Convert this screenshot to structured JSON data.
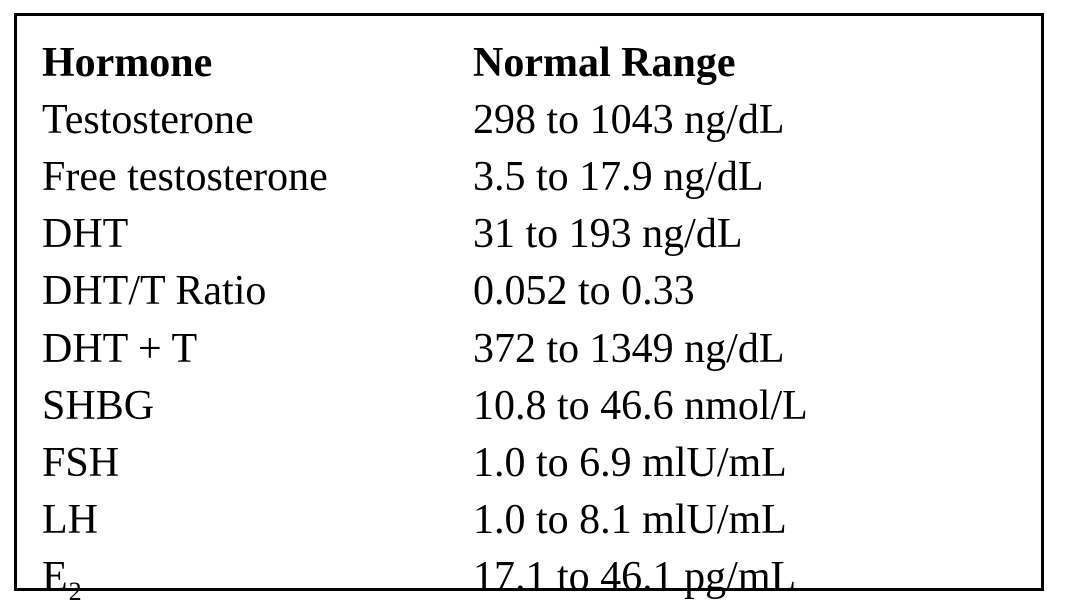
{
  "table": {
    "headers": {
      "hormone": "Hormone",
      "range": "Normal Range"
    },
    "rows": [
      {
        "hormone": "Testosterone",
        "range": "298 to 1043 ng/dL"
      },
      {
        "hormone": "Free testosterone",
        "range": "3.5 to 17.9 ng/dL"
      },
      {
        "hormone": "DHT",
        "range": "31 to 193 ng/dL"
      },
      {
        "hormone": "DHT/T Ratio",
        "range": "0.052 to 0.33"
      },
      {
        "hormone": "DHT + T",
        "range": "372 to 1349 ng/dL"
      },
      {
        "hormone": "SHBG",
        "range": "10.8 to 46.6 nmol/L"
      },
      {
        "hormone": "FSH",
        "range": "1.0 to 6.9 mlU/mL"
      },
      {
        "hormone": "LH",
        "range": "1.0 to 8.1 mlU/mL"
      },
      {
        "hormone": "E",
        "hormone_subscript": "2",
        "range": "17.1 to 46.1 pg/mL"
      }
    ]
  }
}
